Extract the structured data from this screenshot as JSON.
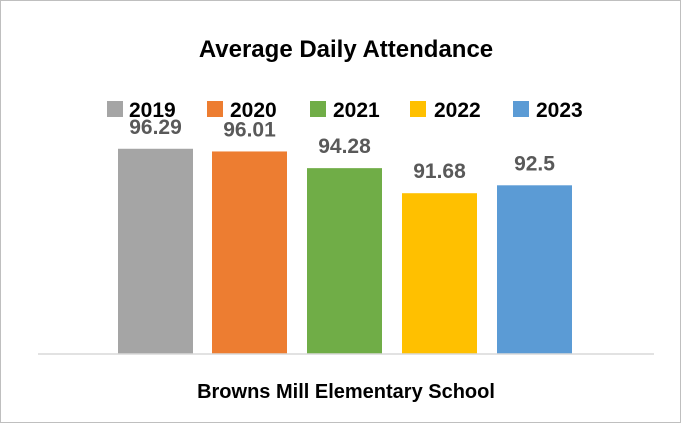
{
  "chart_data": {
    "type": "bar",
    "title": "Average Daily Attendance",
    "xlabel": "Browns Mill Elementary School",
    "ylabel": "",
    "categories": [
      "Browns Mill Elementary School"
    ],
    "series": [
      {
        "name": "2019",
        "values": [
          96.29
        ],
        "color": "#a5a5a5"
      },
      {
        "name": "2020",
        "values": [
          96.01
        ],
        "color": "#ed7d31"
      },
      {
        "name": "2021",
        "values": [
          94.28
        ],
        "color": "#70ad47"
      },
      {
        "name": "2022",
        "values": [
          91.68
        ],
        "color": "#ffc000"
      },
      {
        "name": "2023",
        "values": [
          92.5
        ],
        "color": "#5b9bd5"
      }
    ],
    "data_labels": [
      "96.29",
      "96.01",
      "94.28",
      "91.68",
      "92.5"
    ],
    "ylim": [
      75,
      100
    ],
    "grid": false,
    "legend": "top"
  }
}
